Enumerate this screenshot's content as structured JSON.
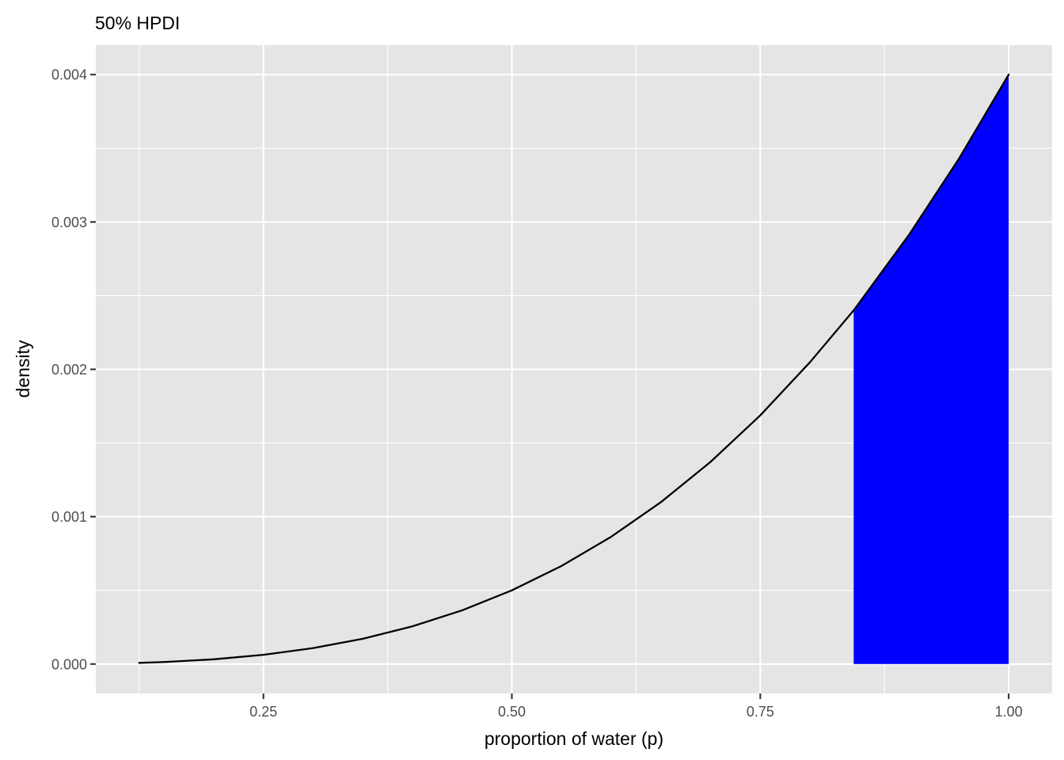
{
  "chart_data": {
    "type": "area",
    "title": "50% HPDI",
    "xlabel": "proportion of water (p)",
    "ylabel": "density",
    "xlim": [
      0.0813,
      1.0437
    ],
    "ylim": [
      -0.0002,
      0.0042
    ],
    "x_ticks": [
      0.25,
      0.5,
      0.75,
      1.0
    ],
    "x_tick_labels": [
      "0.25",
      "0.50",
      "0.75",
      "1.00"
    ],
    "y_ticks": [
      0.0,
      0.001,
      0.002,
      0.003,
      0.004
    ],
    "y_tick_labels": [
      "0.000",
      "0.001",
      "0.002",
      "0.003",
      "0.004"
    ],
    "grid": true,
    "background_color": "#e5e5e5",
    "series": [
      {
        "kind": "line",
        "color": "#000000",
        "x": [
          0.125,
          0.15,
          0.2,
          0.25,
          0.3,
          0.35,
          0.4,
          0.45,
          0.5,
          0.55,
          0.6,
          0.65,
          0.7,
          0.75,
          0.8,
          0.844,
          0.9,
          0.95,
          1.0
        ],
        "y": [
          7.8e-06,
          1.35e-05,
          3.2e-05,
          6.25e-05,
          0.000108,
          0.0001715,
          0.000256,
          0.0003645,
          0.0005,
          0.0006655,
          0.000864,
          0.0010985,
          0.001372,
          0.0016875,
          0.002048,
          0.0024,
          0.002916,
          0.00343,
          0.004
        ]
      },
      {
        "kind": "area",
        "color": "#0000ff",
        "x": [
          0.844,
          0.88,
          0.92,
          0.96,
          1.0
        ],
        "y": [
          0.0024,
          0.0027258,
          0.003115,
          0.0035389,
          0.004
        ]
      }
    ]
  }
}
